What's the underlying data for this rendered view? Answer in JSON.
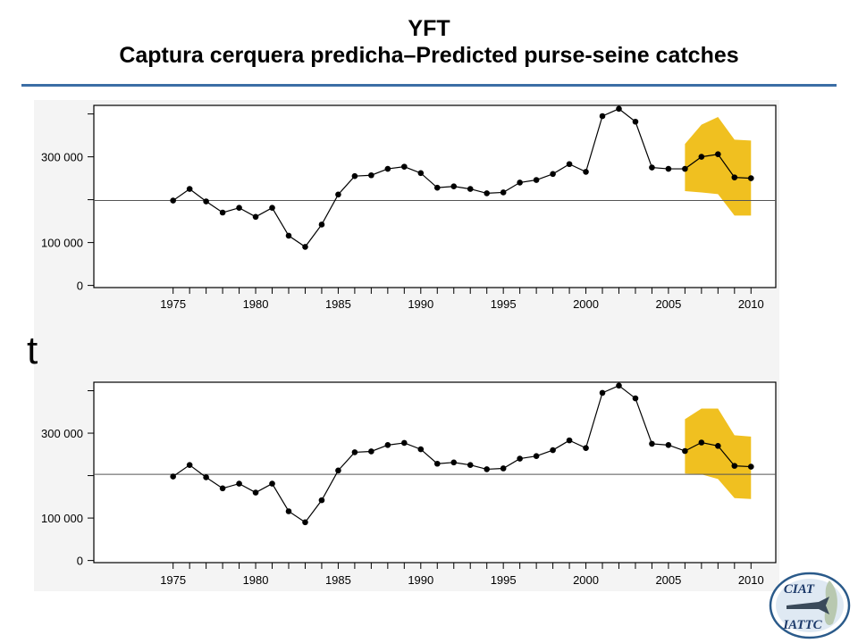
{
  "header": {
    "title": "YFT",
    "subtitle_es": "Captura cerquera predicha",
    "subtitle_sep": "–",
    "subtitle_en": "Predicted purse-seine catches"
  },
  "unit_label": "t",
  "logo": {
    "top_text": "CIAT",
    "bottom_text": "IATTC"
  },
  "colors": {
    "band": "#f0c020",
    "line": "#000000",
    "reference": "#555555",
    "rule": "#3b6ea5"
  },
  "chart_data": [
    {
      "type": "line",
      "x": [
        1975,
        1976,
        1977,
        1978,
        1979,
        1980,
        1981,
        1982,
        1983,
        1984,
        1985,
        1986,
        1987,
        1988,
        1989,
        1990,
        1991,
        1992,
        1993,
        1994,
        1995,
        1996,
        1997,
        1998,
        1999,
        2000,
        2001,
        2002,
        2003,
        2004,
        2005,
        2006,
        2007,
        2008,
        2009,
        2010
      ],
      "y": [
        198000,
        225000,
        196000,
        170000,
        181000,
        160000,
        181000,
        116000,
        90000,
        142000,
        212000,
        255000,
        257000,
        272000,
        277000,
        262000,
        228000,
        231000,
        225000,
        215000,
        217000,
        240000,
        246000,
        260000,
        283000,
        265000,
        395000,
        412000,
        382000,
        275000,
        272000,
        272000,
        300000,
        306000,
        252000,
        250000
      ],
      "forecast_band": {
        "x": [
          2006,
          2007,
          2008,
          2009,
          2010
        ],
        "upper": [
          330000,
          375000,
          393000,
          340000,
          338000
        ],
        "lower": [
          220000,
          217000,
          213000,
          163000,
          163000
        ]
      },
      "reference_y": 198000,
      "xlim": [
        1970.2,
        2011.5
      ],
      "ylim": [
        -5000,
        420000
      ],
      "xticks": [
        "1975",
        "1980",
        "1985",
        "1990",
        "1995",
        "2000",
        "2005",
        "2010"
      ],
      "yticks": [
        {
          "value": 0,
          "label": "0"
        },
        {
          "value": 100000,
          "label": "100 000"
        },
        {
          "value": 300000,
          "label": "300 000"
        }
      ],
      "minor_yticks": [
        200000,
        400000
      ],
      "grid": false
    },
    {
      "type": "line",
      "x": [
        1975,
        1976,
        1977,
        1978,
        1979,
        1980,
        1981,
        1982,
        1983,
        1984,
        1985,
        1986,
        1987,
        1988,
        1989,
        1990,
        1991,
        1992,
        1993,
        1994,
        1995,
        1996,
        1997,
        1998,
        1999,
        2000,
        2001,
        2002,
        2003,
        2004,
        2005,
        2006,
        2007,
        2008,
        2009,
        2010
      ],
      "y": [
        198000,
        225000,
        196000,
        170000,
        181000,
        160000,
        181000,
        116000,
        90000,
        142000,
        212000,
        255000,
        257000,
        272000,
        277000,
        262000,
        228000,
        231000,
        225000,
        215000,
        217000,
        240000,
        246000,
        260000,
        283000,
        265000,
        395000,
        412000,
        382000,
        275000,
        272000,
        258000,
        278000,
        270000,
        223000,
        221000
      ],
      "forecast_band": {
        "x": [
          2006,
          2007,
          2008,
          2009,
          2010
        ],
        "upper": [
          333000,
          358000,
          358000,
          295000,
          292000
        ],
        "lower": [
          205000,
          203000,
          192000,
          147000,
          145000
        ]
      },
      "reference_y": 203000,
      "xlim": [
        1970.2,
        2011.5
      ],
      "ylim": [
        -5000,
        420000
      ],
      "xticks": [
        "1975",
        "1980",
        "1985",
        "1990",
        "1995",
        "2000",
        "2005",
        "2010"
      ],
      "yticks": [
        {
          "value": 0,
          "label": "0"
        },
        {
          "value": 100000,
          "label": "100 000"
        },
        {
          "value": 300000,
          "label": "300 000"
        }
      ],
      "minor_yticks": [
        200000,
        400000
      ],
      "grid": false
    }
  ]
}
